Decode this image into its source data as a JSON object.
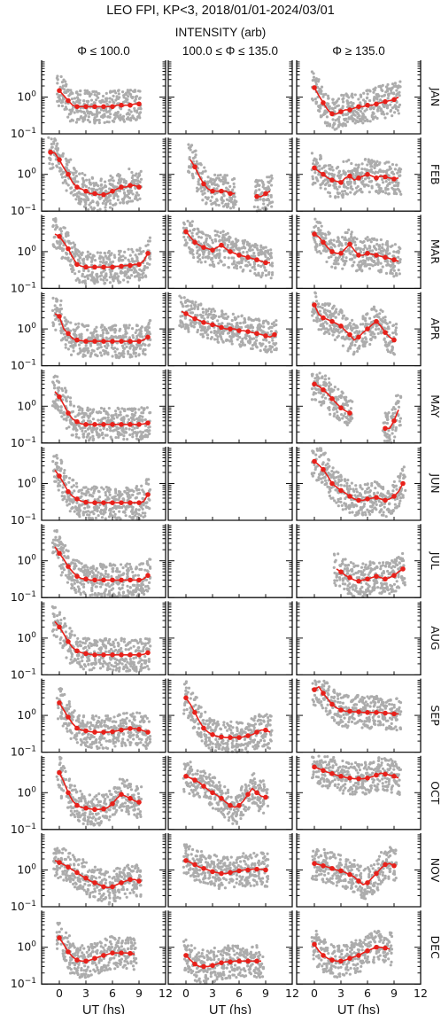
{
  "title": "LEO FPI, KP<3, 2018/01/01-2024/03/01",
  "subtitle": "INTENSITY (arb)",
  "columns": [
    "Φ ≤ 100.0",
    "100.0 ≤ Φ ≤ 135.0",
    "Φ ≥ 135.0"
  ],
  "months": [
    "JAN",
    "FEB",
    "MAR",
    "APR",
    "MAY",
    "JUN",
    "JUL",
    "AUG",
    "SEP",
    "OCT",
    "NOV",
    "DEC"
  ],
  "y_tick_labels": [
    "10^0",
    "10^-1"
  ],
  "x_tick_labels": [
    "0",
    "3",
    "6",
    "9",
    "12"
  ],
  "xlabel": "UT (hs)",
  "colors": {
    "median": "#e8201a",
    "scatter": "#000000"
  },
  "chart_data": {
    "type": "scatter",
    "title": "LEO FPI, KP<3, 2018/01/01-2024/03/01",
    "subtitle": "INTENSITY (arb)",
    "xlabel": "UT (hs)",
    "ylabel": "",
    "xlim": [
      -2,
      12
    ],
    "ylim": [
      0.1,
      10
    ],
    "yscale": "log",
    "x_ticks": [
      0,
      3,
      6,
      9,
      12
    ],
    "median_x": [
      -1.5,
      -1,
      -0.5,
      0,
      0.5,
      1,
      1.5,
      2,
      2.5,
      3,
      3.5,
      4,
      4.5,
      5,
      5.5,
      6,
      6.5,
      7,
      7.5,
      8,
      8.5,
      9,
      9.5,
      10,
      10.5
    ],
    "panels": [
      {
        "month": "JAN",
        "column": "Φ ≤ 100.0",
        "median": [
          null,
          null,
          null,
          1.5,
          1.1,
          0.8,
          0.6,
          0.55,
          0.55,
          0.55,
          0.55,
          0.55,
          0.55,
          0.55,
          0.55,
          0.55,
          0.6,
          0.6,
          0.6,
          0.6,
          0.65,
          0.65,
          null,
          null,
          null
        ]
      },
      {
        "month": "JAN",
        "column": "100.0 ≤ Φ ≤ 135.0",
        "median": []
      },
      {
        "month": "JAN",
        "column": "Φ ≥ 135.0",
        "median": [
          null,
          null,
          null,
          1.8,
          1.1,
          0.7,
          0.45,
          0.35,
          0.35,
          0.4,
          0.45,
          0.45,
          0.5,
          0.55,
          0.55,
          0.6,
          0.6,
          0.65,
          0.7,
          0.75,
          0.8,
          0.85,
          1.0,
          null,
          null
        ]
      },
      {
        "month": "FEB",
        "column": "Φ ≤ 100.0",
        "median": [
          null,
          4,
          3.8,
          2.5,
          1.5,
          1,
          0.6,
          0.45,
          0.4,
          0.35,
          0.3,
          0.3,
          0.28,
          0.28,
          0.3,
          0.35,
          0.4,
          0.45,
          0.45,
          0.5,
          0.5,
          0.45,
          null,
          null,
          null
        ]
      },
      {
        "month": "FEB",
        "column": "100.0 ≤ Φ ≤ 135.0",
        "median": [
          null,
          null,
          null,
          null,
          2.5,
          1.6,
          0.9,
          0.55,
          0.4,
          0.35,
          0.35,
          0.35,
          0.35,
          0.3,
          0.3,
          null,
          null,
          null,
          null,
          0.25,
          0.25,
          0.3,
          0.35,
          null,
          null
        ]
      },
      {
        "month": "FEB",
        "column": "Φ ≥ 135.0",
        "median": [
          null,
          null,
          null,
          1.5,
          1.2,
          1.0,
          0.8,
          0.7,
          0.65,
          0.6,
          0.8,
          0.9,
          0.7,
          0.8,
          0.9,
          1.0,
          0.9,
          0.8,
          0.9,
          0.85,
          0.8,
          0.75,
          0.8,
          null,
          null
        ]
      },
      {
        "month": "MAR",
        "column": "Φ ≤ 100.0",
        "median": [
          null,
          null,
          3.0,
          2.6,
          1.8,
          1.2,
          0.7,
          0.45,
          0.4,
          0.38,
          0.38,
          0.38,
          0.38,
          0.38,
          0.38,
          0.38,
          0.4,
          0.4,
          0.42,
          0.42,
          0.45,
          0.45,
          0.55,
          0.9,
          null
        ]
      },
      {
        "month": "MAR",
        "column": "100.0 ≤ Φ ≤ 135.0",
        "median": [
          null,
          null,
          null,
          3.5,
          2.5,
          1.8,
          1.5,
          1.3,
          1.2,
          1.1,
          1.3,
          1.5,
          1.2,
          1.0,
          0.9,
          0.8,
          0.75,
          0.7,
          0.65,
          0.6,
          0.55,
          0.5,
          0.5,
          null,
          null
        ]
      },
      {
        "month": "MAR",
        "column": "Φ ≥ 135.0",
        "median": [
          null,
          null,
          null,
          3.0,
          2.5,
          1.8,
          1.3,
          1.0,
          0.9,
          0.9,
          1.2,
          1.6,
          1.1,
          0.8,
          0.8,
          0.9,
          0.85,
          0.8,
          0.75,
          0.7,
          0.65,
          0.6,
          0.55,
          null,
          null
        ]
      },
      {
        "month": "APR",
        "column": "Φ ≤ 100.0",
        "median": [
          null,
          null,
          2.6,
          2.2,
          1.0,
          0.75,
          0.55,
          0.5,
          0.48,
          0.46,
          0.46,
          0.46,
          0.46,
          0.46,
          0.46,
          0.46,
          0.46,
          0.46,
          0.46,
          0.46,
          0.46,
          0.46,
          0.5,
          0.6,
          null
        ]
      },
      {
        "month": "APR",
        "column": "100.0 ≤ Φ ≤ 135.0",
        "median": [
          null,
          null,
          3.0,
          2.6,
          2.2,
          1.9,
          1.7,
          1.5,
          1.4,
          1.3,
          1.2,
          1.1,
          1.0,
          1.0,
          1.0,
          0.9,
          0.9,
          0.85,
          0.8,
          0.75,
          0.7,
          0.65,
          0.6,
          0.7,
          null
        ]
      },
      {
        "month": "APR",
        "column": "Φ ≥ 135.0",
        "median": [
          null,
          null,
          null,
          4.5,
          2.5,
          2.0,
          1.8,
          1.6,
          1.4,
          1.2,
          0.9,
          0.7,
          0.5,
          0.6,
          0.8,
          1.0,
          1.3,
          1.6,
          1.2,
          0.8,
          0.6,
          0.5,
          null,
          null,
          null
        ]
      },
      {
        "month": "MAY",
        "column": "Φ ≤ 100.0",
        "median": [
          null,
          null,
          2.5,
          1.8,
          1.1,
          0.65,
          0.45,
          0.38,
          0.33,
          0.32,
          0.32,
          0.32,
          0.32,
          0.32,
          0.32,
          0.32,
          0.32,
          0.32,
          0.32,
          0.32,
          0.32,
          0.32,
          0.33,
          0.35,
          null
        ]
      },
      {
        "month": "MAY",
        "column": "100.0 ≤ Φ ≤ 135.0",
        "median": []
      },
      {
        "month": "MAY",
        "column": "Φ ≥ 135.0",
        "median": [
          null,
          null,
          null,
          4.0,
          3.5,
          2.8,
          2.2,
          1.6,
          1.2,
          0.9,
          0.75,
          0.65,
          null,
          null,
          null,
          null,
          null,
          null,
          null,
          0.25,
          0.25,
          0.4,
          0.8,
          null,
          null
        ]
      },
      {
        "month": "JUN",
        "column": "Φ ≤ 100.0",
        "median": [
          null,
          null,
          2.3,
          1.6,
          1.0,
          0.6,
          0.45,
          0.38,
          0.33,
          0.31,
          0.3,
          0.3,
          0.3,
          0.3,
          0.3,
          0.3,
          0.3,
          0.3,
          0.3,
          0.3,
          0.3,
          0.3,
          0.32,
          0.5,
          null
        ]
      },
      {
        "month": "JUN",
        "column": "100.0 ≤ Φ ≤ 135.0",
        "median": []
      },
      {
        "month": "JUN",
        "column": "Φ ≥ 135.0",
        "median": [
          null,
          null,
          null,
          4.0,
          3.2,
          2.4,
          1.6,
          1.0,
          0.8,
          0.65,
          0.55,
          0.45,
          0.38,
          0.35,
          0.35,
          0.38,
          0.4,
          0.42,
          0.38,
          0.35,
          0.38,
          0.45,
          0.6,
          1.0,
          null
        ]
      },
      {
        "month": "JUL",
        "column": "Φ ≤ 100.0",
        "median": [
          null,
          null,
          2.4,
          1.6,
          1.1,
          0.7,
          0.5,
          0.38,
          0.33,
          0.32,
          0.3,
          0.3,
          0.3,
          0.3,
          0.3,
          0.3,
          0.3,
          0.3,
          0.3,
          0.3,
          0.3,
          0.3,
          0.32,
          0.4,
          null
        ]
      },
      {
        "month": "JUL",
        "column": "100.0 ≤ Φ ≤ 135.0",
        "median": []
      },
      {
        "month": "JUL",
        "column": "Φ ≥ 135.0",
        "median": [
          null,
          null,
          null,
          null,
          null,
          null,
          null,
          null,
          0.6,
          0.5,
          0.4,
          0.35,
          0.3,
          0.28,
          0.3,
          0.32,
          0.35,
          0.38,
          0.35,
          0.32,
          0.35,
          0.4,
          0.5,
          0.6,
          null
        ]
      },
      {
        "month": "AUG",
        "column": "Φ ≤ 100.0",
        "median": [
          null,
          null,
          2.8,
          2.0,
          1.3,
          0.8,
          0.55,
          0.45,
          0.4,
          0.38,
          0.36,
          0.35,
          0.35,
          0.35,
          0.35,
          0.35,
          0.35,
          0.35,
          0.35,
          0.35,
          0.35,
          0.35,
          0.36,
          0.4,
          null
        ]
      },
      {
        "month": "AUG",
        "column": "100.0 ≤ Φ ≤ 135.0",
        "median": []
      },
      {
        "month": "AUG",
        "column": "Φ ≥ 135.0",
        "median": []
      },
      {
        "month": "SEP",
        "column": "Φ ≤ 100.0",
        "median": [
          null,
          null,
          null,
          2.2,
          1.4,
          0.9,
          0.6,
          0.45,
          0.4,
          0.38,
          0.36,
          0.35,
          0.35,
          0.35,
          0.35,
          0.36,
          0.38,
          0.4,
          0.42,
          0.44,
          0.44,
          0.42,
          0.38,
          0.35,
          null
        ]
      },
      {
        "month": "SEP",
        "column": "100.0 ≤ Φ ≤ 135.0",
        "median": [
          null,
          null,
          null,
          3.0,
          2.0,
          1.2,
          0.7,
          0.45,
          0.35,
          0.3,
          0.27,
          0.26,
          0.25,
          0.25,
          0.25,
          0.25,
          0.26,
          0.28,
          0.3,
          0.35,
          0.4,
          0.4,
          0.35,
          null,
          null
        ]
      },
      {
        "month": "SEP",
        "column": "Φ ≥ 135.0",
        "median": [
          null,
          null,
          null,
          5.0,
          6.0,
          4.0,
          2.8,
          2.0,
          1.6,
          1.4,
          1.3,
          1.3,
          1.25,
          1.25,
          1.2,
          1.2,
          1.2,
          1.2,
          1.2,
          1.15,
          1.15,
          1.1,
          1.1,
          null,
          null
        ]
      },
      {
        "month": "OCT",
        "column": "Φ ≤ 100.0",
        "median": [
          null,
          null,
          null,
          3.5,
          2.0,
          1.0,
          0.6,
          0.45,
          0.4,
          0.38,
          0.36,
          0.35,
          0.35,
          0.36,
          0.4,
          0.5,
          0.7,
          0.9,
          0.8,
          0.7,
          0.6,
          0.55,
          null,
          null,
          null
        ]
      },
      {
        "month": "OCT",
        "column": "100.0 ≤ Φ ≤ 135.0",
        "median": [
          null,
          null,
          null,
          2.8,
          2.5,
          2.2,
          1.9,
          1.5,
          1.2,
          1.0,
          0.85,
          0.7,
          0.55,
          0.45,
          0.4,
          0.45,
          0.6,
          0.9,
          1.3,
          1.0,
          0.8,
          0.75,
          null,
          null,
          null
        ]
      },
      {
        "month": "OCT",
        "column": "Φ ≥ 135.0",
        "median": [
          null,
          null,
          null,
          5.0,
          4.5,
          4.0,
          3.6,
          3.3,
          3.0,
          2.8,
          2.6,
          2.5,
          2.4,
          2.4,
          2.4,
          2.5,
          2.7,
          3.0,
          3.4,
          3.2,
          3.0,
          2.8,
          2.5,
          null,
          null
        ]
      },
      {
        "month": "NOV",
        "column": "Φ ≤ 100.0",
        "median": [
          null,
          null,
          1.8,
          1.6,
          1.4,
          1.2,
          1.0,
          0.85,
          0.7,
          0.6,
          0.5,
          0.45,
          0.4,
          0.35,
          0.33,
          0.35,
          0.4,
          0.45,
          0.5,
          0.55,
          0.55,
          0.5,
          null,
          null,
          null
        ]
      },
      {
        "month": "NOV",
        "column": "100.0 ≤ Φ ≤ 135.0",
        "median": [
          null,
          null,
          null,
          1.8,
          1.6,
          1.4,
          1.2,
          1.1,
          1.0,
          0.9,
          0.85,
          0.8,
          0.8,
          0.85,
          0.9,
          0.95,
          1.0,
          1.0,
          1.05,
          1.05,
          1.05,
          1.0,
          null,
          null,
          null
        ]
      },
      {
        "month": "NOV",
        "column": "Φ ≥ 135.0",
        "median": [
          null,
          null,
          null,
          1.5,
          1.4,
          1.3,
          1.2,
          1.1,
          1.0,
          0.95,
          0.85,
          0.75,
          0.65,
          0.5,
          0.4,
          0.45,
          0.6,
          0.8,
          1.1,
          1.4,
          1.5,
          1.3,
          null,
          null,
          null
        ]
      },
      {
        "month": "DEC",
        "column": "Φ ≤ 100.0",
        "median": [
          null,
          null,
          null,
          1.8,
          1.2,
          0.75,
          0.55,
          0.45,
          0.42,
          0.42,
          0.45,
          0.5,
          0.55,
          0.6,
          0.65,
          0.7,
          0.7,
          0.7,
          0.7,
          0.68,
          0.65,
          null,
          null,
          null,
          null
        ]
      },
      {
        "month": "DEC",
        "column": "100.0 ≤ Φ ≤ 135.0",
        "median": [
          null,
          null,
          null,
          0.6,
          0.45,
          0.35,
          0.3,
          0.3,
          0.3,
          0.32,
          0.35,
          0.38,
          0.4,
          0.4,
          0.42,
          0.42,
          0.42,
          0.42,
          0.42,
          0.42,
          0.42,
          null,
          null,
          null,
          null
        ]
      },
      {
        "month": "DEC",
        "column": "Φ ≥ 135.0",
        "median": [
          null,
          null,
          null,
          1.2,
          0.8,
          0.6,
          0.5,
          0.45,
          0.42,
          0.42,
          0.45,
          0.5,
          0.55,
          0.6,
          0.7,
          0.8,
          0.9,
          1.0,
          1.0,
          0.95,
          0.9,
          null,
          null,
          null,
          null
        ]
      }
    ]
  }
}
